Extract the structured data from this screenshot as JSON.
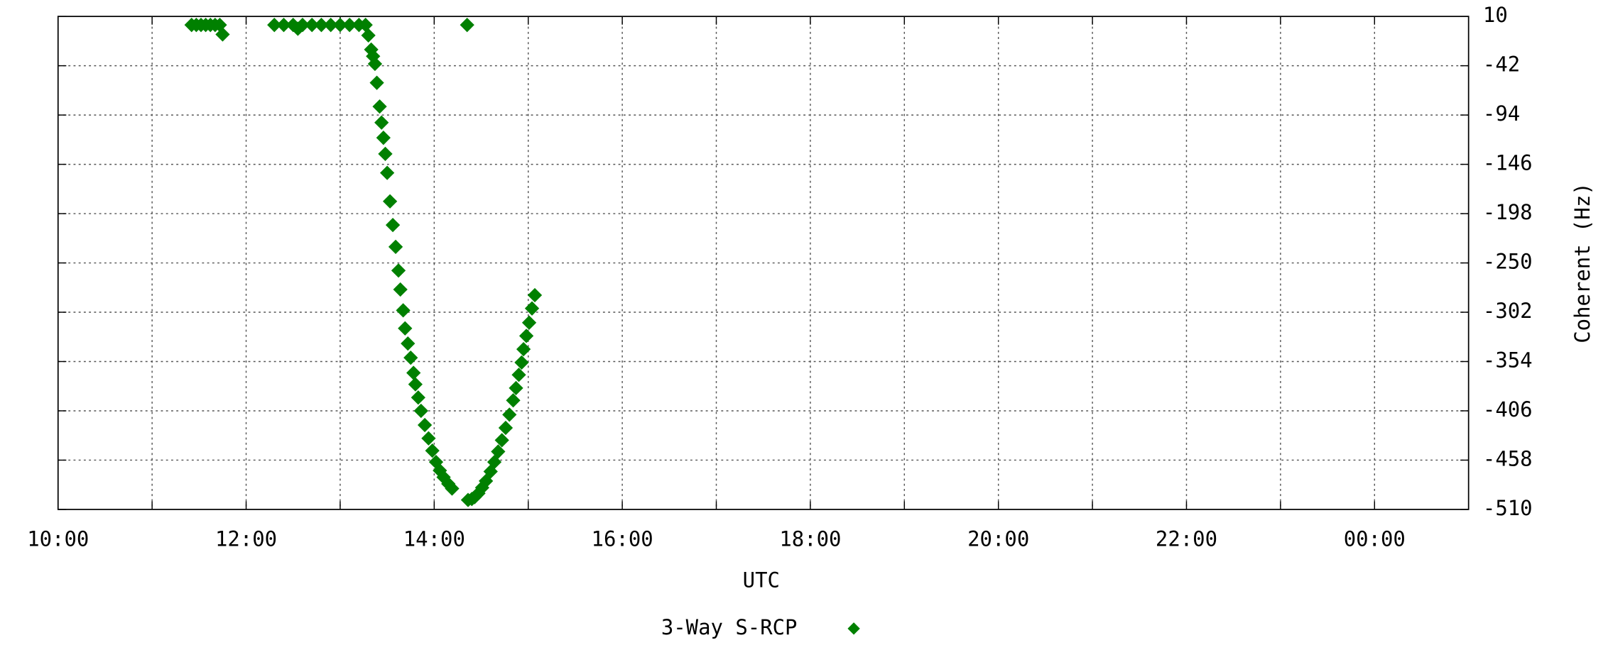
{
  "chart_data": {
    "type": "scatter",
    "x_label": "UTC",
    "y_label": "Coherent (Hz)",
    "y_axis_side": "right",
    "grid": true,
    "legend": "bottom",
    "xlim": [
      10,
      25
    ],
    "xticks": [
      {
        "value": 10,
        "label": "10:00"
      },
      {
        "value": 12,
        "label": "12:00"
      },
      {
        "value": 14,
        "label": "14:00"
      },
      {
        "value": 16,
        "label": "16:00"
      },
      {
        "value": 18,
        "label": "18:00"
      },
      {
        "value": 20,
        "label": "20:00"
      },
      {
        "value": 22,
        "label": "22:00"
      },
      {
        "value": 24,
        "label": "00:00"
      }
    ],
    "xminorticks": [
      11,
      13,
      15,
      17,
      19,
      21,
      23
    ],
    "ylim": [
      -510,
      10
    ],
    "yticks": [
      10,
      -42,
      -94,
      -146,
      -198,
      -250,
      -302,
      -354,
      -406,
      -458,
      -510
    ],
    "series": [
      {
        "name": "3-Way S-RCP",
        "color": "#008000",
        "marker": "diamond",
        "x": [
          11.42,
          11.47,
          11.52,
          11.57,
          11.62,
          11.67,
          11.72,
          11.75,
          12.3,
          12.4,
          12.5,
          12.55,
          12.6,
          12.7,
          12.8,
          12.9,
          13.0,
          13.1,
          13.2,
          13.27,
          13.3,
          13.33,
          13.35,
          13.37,
          13.39,
          13.42,
          13.44,
          13.46,
          13.48,
          13.5,
          13.53,
          13.56,
          13.59,
          13.62,
          13.64,
          13.67,
          13.69,
          13.72,
          13.75,
          13.78,
          13.8,
          13.83,
          13.86,
          13.9,
          13.94,
          13.98,
          14.02,
          14.06,
          14.1,
          14.15,
          14.19,
          14.35,
          14.36,
          14.4,
          14.43,
          14.47,
          14.51,
          14.55,
          14.6,
          14.64,
          14.68,
          14.72,
          14.76,
          14.8,
          14.84,
          14.87,
          14.9,
          14.93,
          14.95,
          14.98,
          15.01,
          15.04,
          15.07
        ],
        "values": [
          1,
          1,
          1,
          1,
          1,
          1,
          1,
          -9,
          1,
          1,
          1,
          -3,
          1,
          1,
          1,
          1,
          1,
          1,
          1,
          1,
          -10,
          -25,
          -32,
          -40,
          -60,
          -85,
          -102,
          -118,
          -135,
          -155,
          -185,
          -210,
          -233,
          -258,
          -278,
          -300,
          -319,
          -335,
          -350,
          -366,
          -378,
          -392,
          -406,
          -421,
          -435,
          -448,
          -460,
          -469,
          -476,
          -483,
          -488,
          1,
          -500,
          -499,
          -497,
          -493,
          -487,
          -480,
          -470,
          -460,
          -449,
          -437,
          -424,
          -410,
          -395,
          -382,
          -368,
          -355,
          -341,
          -327,
          -313,
          -298,
          -284
        ]
      }
    ]
  }
}
